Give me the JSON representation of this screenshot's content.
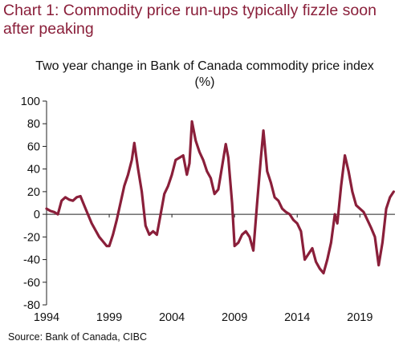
{
  "heading": "Chart 1: Commodity price run-ups typically fizzle soon after peaking",
  "source": "Source: Bank of Canada, CIBC",
  "chart_data": {
    "type": "line",
    "title": "Two year change in Bank of Canada commodity price index (%)",
    "xlabel": "",
    "ylabel": "",
    "xlim": [
      1994,
      2021.8
    ],
    "ylim": [
      -80,
      100
    ],
    "x_ticks": [
      1994,
      1999,
      2004,
      2009,
      2014,
      2019
    ],
    "y_ticks": [
      -80,
      -60,
      -40,
      -20,
      0,
      20,
      40,
      60,
      80,
      100
    ],
    "grid": false,
    "legend": "none",
    "color": "#8a1f3a",
    "series": [
      {
        "x": [
          1994.0,
          1994.3,
          1994.6,
          1994.9,
          1995.2,
          1995.5,
          1995.8,
          1996.1,
          1996.4,
          1996.7,
          1997.0,
          1997.3,
          1997.6,
          1997.9,
          1998.2,
          1998.5,
          1998.8,
          1999.0,
          1999.3,
          1999.6,
          1999.9,
          2000.2,
          2000.5,
          2000.8,
          2001.0,
          2001.3,
          2001.6,
          2001.9,
          2002.2,
          2002.5,
          2002.8,
          2003.1,
          2003.4,
          2003.7,
          2004.0,
          2004.3,
          2004.6,
          2004.9,
          2005.2,
          2005.4,
          2005.6,
          2005.9,
          2006.2,
          2006.5,
          2006.8,
          2007.1,
          2007.4,
          2007.7,
          2008.0,
          2008.3,
          2008.5,
          2008.8,
          2009.0,
          2009.3,
          2009.6,
          2009.9,
          2010.2,
          2010.5,
          2010.8,
          2011.1,
          2011.3,
          2011.6,
          2011.9,
          2012.2,
          2012.5,
          2012.8,
          2013.1,
          2013.4,
          2013.7,
          2014.0,
          2014.3,
          2014.6,
          2014.9,
          2015.2,
          2015.5,
          2015.8,
          2016.1,
          2016.4,
          2016.7,
          2017.0,
          2017.2,
          2017.5,
          2017.8,
          2018.1,
          2018.4,
          2018.7,
          2019.0,
          2019.3,
          2019.6,
          2019.9,
          2020.2,
          2020.5,
          2020.8,
          2021.1,
          2021.4,
          2021.7
        ],
        "values": [
          5,
          3,
          2,
          0,
          12,
          15,
          13,
          12,
          15,
          16,
          8,
          0,
          -8,
          -14,
          -20,
          -24,
          -28,
          -28,
          -18,
          -5,
          10,
          25,
          35,
          48,
          63,
          40,
          20,
          -10,
          -18,
          -15,
          -18,
          0,
          18,
          25,
          35,
          48,
          50,
          52,
          35,
          45,
          82,
          65,
          55,
          48,
          38,
          32,
          18,
          22,
          42,
          62,
          50,
          10,
          -28,
          -25,
          -18,
          -15,
          -20,
          -32,
          10,
          50,
          74,
          38,
          28,
          15,
          12,
          5,
          2,
          0,
          -5,
          -8,
          -15,
          -40,
          -35,
          -30,
          -42,
          -48,
          -52,
          -40,
          -25,
          0,
          -8,
          25,
          52,
          38,
          20,
          8,
          5,
          2,
          -5,
          -12,
          -20,
          -45,
          -25,
          5,
          15,
          20
        ]
      }
    ]
  }
}
